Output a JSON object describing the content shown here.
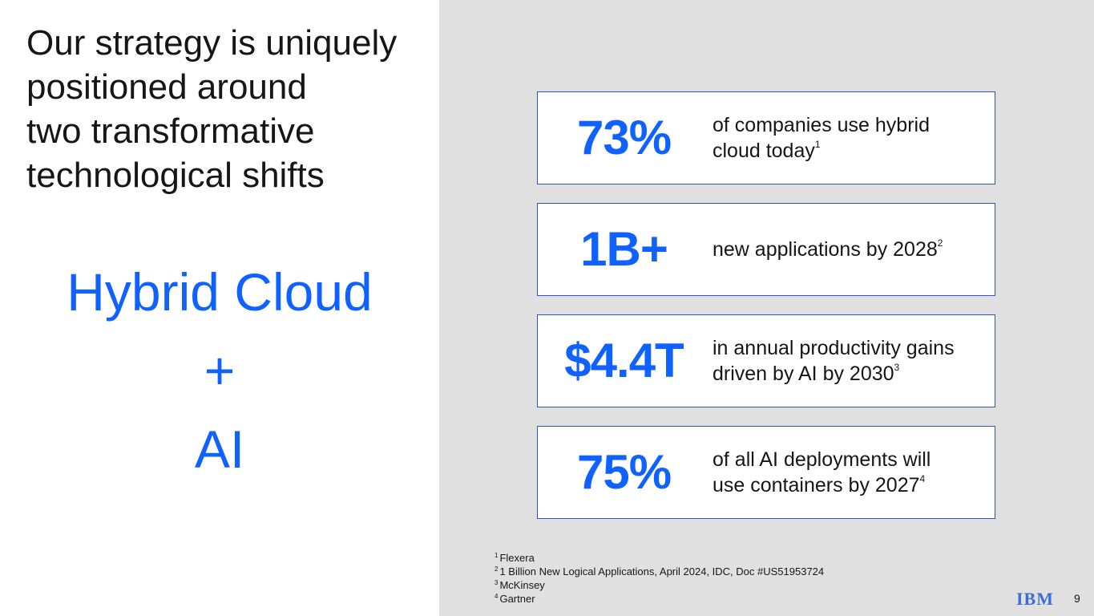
{
  "slide": {
    "title_lines": [
      "Our strategy is uniquely",
      "positioned around",
      "two transformative",
      "technological shifts"
    ],
    "highlight": [
      "Hybrid Cloud",
      "+",
      "AI"
    ],
    "stats": [
      {
        "value": "73%",
        "text_lines": [
          "of companies use hybrid",
          "cloud today"
        ],
        "note": "1"
      },
      {
        "value": "1B+",
        "text_lines": [
          "new applications by 2028"
        ],
        "note": "2"
      },
      {
        "value": "$4.4T",
        "text_lines": [
          "in annual productivity gains",
          "driven by AI by 2030"
        ],
        "note": "3"
      },
      {
        "value": "75%",
        "text_lines": [
          "of all AI deployments will",
          "use containers by 2027"
        ],
        "note": "4"
      }
    ],
    "footnotes": [
      {
        "marker": "1",
        "text": "Flexera"
      },
      {
        "marker": "2",
        "text": "1 Billion New Logical Applications, April 2024, IDC, Doc #US51953724"
      },
      {
        "marker": "3",
        "text": "McKinsey"
      },
      {
        "marker": "4",
        "text": "Gartner"
      }
    ],
    "logo": "IBM",
    "page_number": "9"
  }
}
